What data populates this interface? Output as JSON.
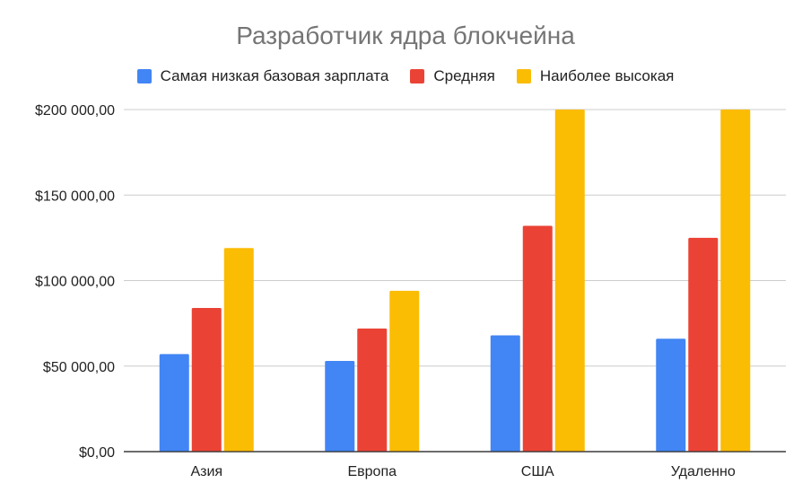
{
  "chart_data": {
    "type": "bar",
    "title": "Разработчик ядра блокчейна",
    "categories": [
      "Азия",
      "Европа",
      "США",
      "Удаленно"
    ],
    "series": [
      {
        "name": "Самая низкая базовая зарплата",
        "color": "#4285F4",
        "values": [
          57000,
          53000,
          68000,
          66000
        ]
      },
      {
        "name": "Средняя",
        "color": "#EA4335",
        "values": [
          84000,
          72000,
          132000,
          125000
        ]
      },
      {
        "name": "Наиболее высокая",
        "color": "#FBBC04",
        "values": [
          119000,
          94000,
          200000,
          200000
        ]
      }
    ],
    "y_ticks": [
      0,
      50000,
      100000,
      150000,
      200000
    ],
    "y_tick_labels": [
      "$0,00",
      "$50 000,00",
      "$100 000,00",
      "$150 000,00",
      "$200 000,00"
    ],
    "ylim": [
      0,
      200000
    ],
    "grid": true,
    "legend_position": "top"
  }
}
